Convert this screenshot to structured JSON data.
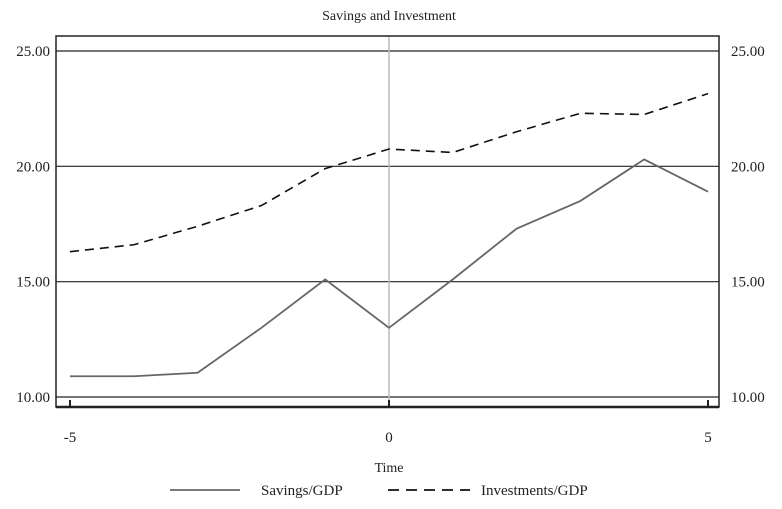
{
  "chart_data": {
    "type": "line",
    "title": "Savings and Investment",
    "xlabel": "Time",
    "ylabel": "",
    "xlim": [
      -5,
      5
    ],
    "ylim": [
      10,
      25
    ],
    "x_ticks": [
      "-5",
      "0",
      "5"
    ],
    "y_ticks": [
      "10.00",
      "15.00",
      "20.00",
      "25.00"
    ],
    "y_ticks_right": [
      "10.00",
      "15.00",
      "20.00",
      "25.00"
    ],
    "grid": "horizontal",
    "reference_line_x": 0,
    "legend_position": "bottom",
    "x": [
      -5,
      -4,
      -3,
      -2,
      -1,
      0,
      1,
      2,
      3,
      4,
      5
    ],
    "series": [
      {
        "name": "Savings/GDP",
        "style": "solid",
        "color": "#666666",
        "values": [
          10.9,
          10.9,
          11.05,
          13.0,
          15.1,
          13.0,
          15.1,
          17.3,
          18.5,
          20.3,
          18.9
        ]
      },
      {
        "name": "Investments/GDP",
        "style": "dashed",
        "color": "#111111",
        "values": [
          16.3,
          16.6,
          17.4,
          18.3,
          19.9,
          20.75,
          20.6,
          21.5,
          22.3,
          22.25,
          23.15
        ]
      }
    ]
  }
}
